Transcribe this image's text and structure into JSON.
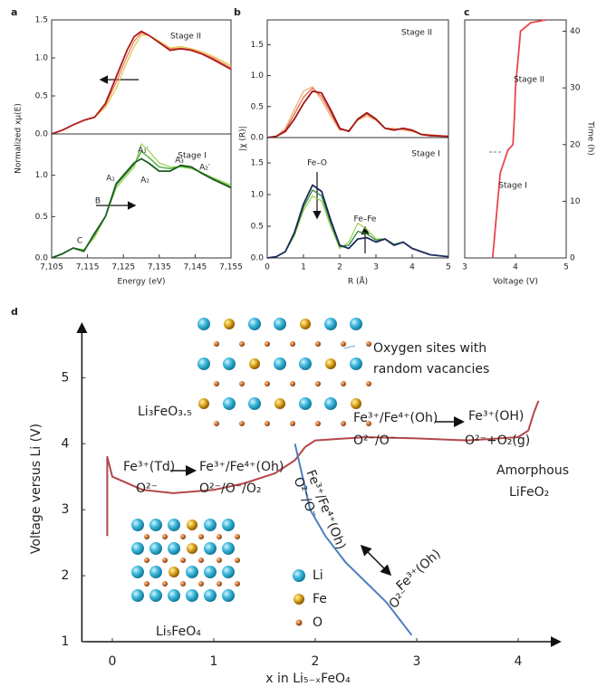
{
  "panel_labels": [
    "a",
    "b",
    "c",
    "d"
  ],
  "chart_data": [
    {
      "type": "line",
      "ylabel": "Normalized xμ(E)",
      "annotations": [
        "Stage II"
      ],
      "x": [
        7105,
        7108,
        7111,
        7114,
        7117,
        7120,
        7123,
        7126,
        7128,
        7130,
        7132,
        7135,
        7138,
        7141,
        7144,
        7147,
        7150,
        7155
      ],
      "xlim": [
        7105,
        7155
      ],
      "ylim": [
        0,
        1.5
      ],
      "yticks": [
        {
          "value": 0,
          "label": "0.0"
        },
        0.5,
        {
          "value": 1,
          "label": "1.0"
        },
        1.5
      ],
      "series": [
        {
          "color": "#e6c84a",
          "values": [
            0,
            0.05,
            0.12,
            0.18,
            0.22,
            0.35,
            0.6,
            0.95,
            1.15,
            1.3,
            1.3,
            1.22,
            1.13,
            1.15,
            1.12,
            1.08,
            1.02,
            0.9
          ]
        },
        {
          "color": "#e8806a",
          "values": [
            0,
            0.05,
            0.12,
            0.18,
            0.22,
            0.38,
            0.68,
            1.02,
            1.22,
            1.33,
            1.3,
            1.21,
            1.12,
            1.13,
            1.11,
            1.06,
            1.0,
            0.87
          ]
        },
        {
          "color": "#b01c1c",
          "values": [
            0,
            0.05,
            0.12,
            0.18,
            0.22,
            0.4,
            0.75,
            1.1,
            1.28,
            1.35,
            1.3,
            1.2,
            1.1,
            1.12,
            1.1,
            1.05,
            0.98,
            0.85
          ]
        }
      ]
    },
    {
      "type": "line",
      "xlabel": "Energy (eV)",
      "annotations": [
        "Stage I",
        "A₁′",
        "A₁",
        "A₂",
        "A₃",
        "A₂′",
        "B",
        "C"
      ],
      "x": [
        7105,
        7108,
        7111,
        7114,
        7117,
        7120,
        7123,
        7126,
        7128,
        7130,
        7132,
        7135,
        7138,
        7141,
        7144,
        7147,
        7150,
        7155
      ],
      "xlim": [
        7105,
        7155
      ],
      "ylim": [
        0,
        1.5
      ],
      "xticks": [
        {
          "value": 7105,
          "label": "7,105"
        },
        {
          "value": 7115,
          "label": "7,115"
        },
        {
          "value": 7125,
          "label": "7,125"
        },
        {
          "value": 7135,
          "label": "7,135"
        },
        {
          "value": 7145,
          "label": "7,145"
        },
        {
          "value": 7155,
          "label": "7,155"
        }
      ],
      "yticks": [
        {
          "value": 0,
          "label": "0.0"
        },
        0.5,
        {
          "value": 1,
          "label": "1.0"
        }
      ],
      "series": [
        {
          "color": "#9ed45a",
          "values": [
            0,
            0.05,
            0.12,
            0.1,
            0.25,
            0.5,
            0.85,
            1.0,
            1.1,
            1.38,
            1.3,
            1.15,
            1.1,
            1.1,
            1.08,
            1.03,
            0.97,
            0.88
          ]
        },
        {
          "color": "#4aa83a",
          "values": [
            0,
            0.05,
            0.12,
            0.09,
            0.28,
            0.5,
            0.88,
            1.03,
            1.13,
            1.29,
            1.22,
            1.1,
            1.08,
            1.11,
            1.09,
            1.02,
            0.96,
            0.86
          ]
        },
        {
          "color": "#1a5e20",
          "values": [
            0,
            0.05,
            0.12,
            0.08,
            0.3,
            0.5,
            0.9,
            1.05,
            1.15,
            1.2,
            1.15,
            1.05,
            1.05,
            1.12,
            1.1,
            1.02,
            0.95,
            0.85
          ]
        }
      ]
    },
    {
      "type": "line",
      "ylabel": "|χ (R)|",
      "annotations": [
        "Stage II"
      ],
      "x": [
        0,
        0.25,
        0.5,
        0.75,
        1,
        1.25,
        1.5,
        1.75,
        2,
        2.25,
        2.5,
        2.75,
        3,
        3.25,
        3.5,
        3.75,
        4,
        4.25,
        4.5,
        5
      ],
      "xlim": [
        0,
        5
      ],
      "ylim": [
        0,
        1.9
      ],
      "yticks": [
        {
          "value": 0,
          "label": "0.0"
        },
        0.5,
        {
          "value": 1,
          "label": "1.0"
        },
        1.5
      ],
      "series": [
        {
          "color": "#f0b27a",
          "values": [
            0,
            0.02,
            0.15,
            0.45,
            0.75,
            0.82,
            0.6,
            0.35,
            0.12,
            0.12,
            0.28,
            0.35,
            0.28,
            0.15,
            0.15,
            0.12,
            0.1,
            0.06,
            0.05,
            0.02
          ]
        },
        {
          "color": "#e06a4a",
          "values": [
            0,
            0.02,
            0.12,
            0.38,
            0.65,
            0.8,
            0.66,
            0.4,
            0.13,
            0.11,
            0.29,
            0.38,
            0.29,
            0.15,
            0.13,
            0.14,
            0.11,
            0.05,
            0.04,
            0.02
          ]
        },
        {
          "color": "#a01515",
          "values": [
            0,
            0.02,
            0.1,
            0.3,
            0.55,
            0.75,
            0.72,
            0.45,
            0.15,
            0.1,
            0.3,
            0.4,
            0.3,
            0.15,
            0.12,
            0.15,
            0.12,
            0.05,
            0.03,
            0.02
          ]
        }
      ]
    },
    {
      "type": "line",
      "xlabel": "R (Å)",
      "annotations": [
        "Stage I",
        "Fe–O",
        "Fe–Fe"
      ],
      "x": [
        0,
        0.25,
        0.5,
        0.75,
        1,
        1.25,
        1.5,
        1.75,
        2,
        2.25,
        2.5,
        2.75,
        3,
        3.25,
        3.5,
        3.75,
        4,
        4.25,
        4.5,
        5
      ],
      "xlim": [
        0,
        5
      ],
      "ylim": [
        0,
        1.9
      ],
      "xticks": [
        0,
        1,
        2,
        3,
        4,
        5
      ],
      "yticks": [
        {
          "value": 0,
          "label": "0.0"
        },
        0.5,
        {
          "value": 1,
          "label": "1.0"
        },
        1.5
      ],
      "series": [
        {
          "color": "#9ed45a",
          "values": [
            0,
            0.02,
            0.1,
            0.35,
            0.75,
            0.98,
            0.9,
            0.5,
            0.15,
            0.25,
            0.55,
            0.45,
            0.3,
            0.3,
            0.22,
            0.25,
            0.15,
            0.1,
            0.05,
            0.02
          ]
        },
        {
          "color": "#2e8b3a",
          "values": [
            0,
            0.02,
            0.1,
            0.38,
            0.8,
            1.07,
            0.98,
            0.55,
            0.18,
            0.2,
            0.42,
            0.38,
            0.28,
            0.3,
            0.21,
            0.25,
            0.15,
            0.1,
            0.05,
            0.02
          ]
        },
        {
          "color": "#1c2a5a",
          "values": [
            0,
            0.02,
            0.1,
            0.4,
            0.85,
            1.15,
            1.05,
            0.6,
            0.2,
            0.15,
            0.3,
            0.32,
            0.25,
            0.3,
            0.2,
            0.25,
            0.15,
            0.1,
            0.05,
            0.02
          ]
        }
      ]
    },
    {
      "type": "line",
      "xlabel": "Voltage (V)",
      "ylabel": "Time (h)",
      "annotations": [
        "Stage II",
        "Stage I"
      ],
      "x": [
        3.55,
        3.6,
        3.65,
        3.7,
        3.85,
        3.95,
        3.98,
        4.0,
        4.05,
        4.1,
        4.3,
        4.6
      ],
      "xlim": [
        3,
        5
      ],
      "ylim": [
        0,
        42
      ],
      "xticks": [
        3,
        4,
        5
      ],
      "yticks": [
        0,
        10,
        20,
        30,
        40
      ],
      "series": [
        {
          "color": "#e8474a",
          "values": [
            0,
            5,
            10,
            15,
            19,
            20,
            25,
            30,
            35,
            40,
            41.5,
            42
          ]
        }
      ]
    },
    {
      "type": "line",
      "xlabel": "x in Li₅₋ₓFeO₄",
      "ylabel": "Voltage versus Li (V)",
      "annotations": [
        "Oxygen sites with",
        "random vacancies",
        "Li₃FeO₃.₅",
        "Fe³⁺/Fe⁴⁺(Oh)",
        "O²⁻/O⁻",
        "Fe³⁺(OH)",
        "O²⁻+O₂(g)",
        "Fe³⁺(Td)",
        "O²⁻",
        "Fe³⁺/Fe⁴⁺(Oh)",
        "O²⁻/O⁻/O₂",
        "Amorphous",
        "LiFeO₂",
        "Fe³⁺/Fe⁴⁺(Oh)",
        "O²⁻/O⁻",
        "Fe³⁺(Oh)",
        "O²⁻",
        "Li",
        "Fe",
        "O",
        "Li₅FeO₄"
      ],
      "xlim": [
        -0.3,
        4.4
      ],
      "ylim": [
        1,
        5.8
      ],
      "xticks": [
        0,
        1,
        2,
        3,
        4
      ],
      "yticks": [
        1,
        2,
        3,
        4,
        5
      ],
      "series": [
        {
          "color": "#b5474a",
          "x": [
            -0.05,
            -0.05,
            0,
            0.3,
            0.6,
            1,
            1.3,
            1.6,
            1.8,
            1.9,
            2.0,
            2.5,
            3,
            3.5,
            4,
            4.1,
            4.15,
            4.2
          ],
          "values": [
            2.6,
            3.8,
            3.5,
            3.3,
            3.25,
            3.3,
            3.4,
            3.55,
            3.75,
            3.95,
            4.05,
            4.1,
            4.08,
            4.05,
            4.1,
            4.2,
            4.45,
            4.65
          ]
        },
        {
          "color": "#4a7fc0",
          "x": [
            1.8,
            1.95,
            2.1,
            2.3,
            2.5,
            2.7,
            2.85,
            2.95
          ],
          "values": [
            4.0,
            3.0,
            2.6,
            2.2,
            1.9,
            1.6,
            1.3,
            1.1
          ]
        }
      ]
    }
  ]
}
